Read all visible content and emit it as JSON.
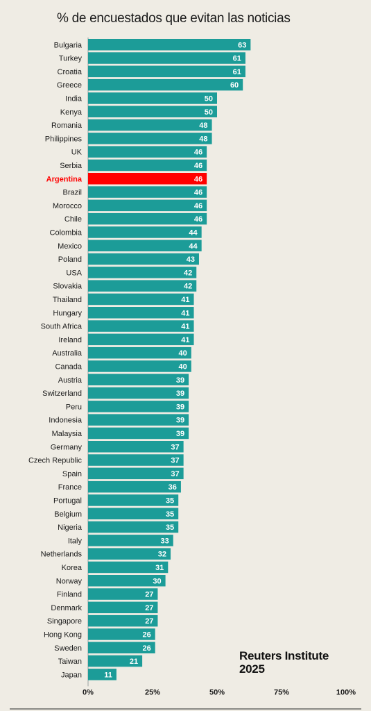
{
  "chart_data": {
    "type": "bar",
    "orientation": "horizontal",
    "title": "% de encuestados que evitan las noticias",
    "xlim": [
      0,
      100
    ],
    "ticks": [
      "0%",
      "25%",
      "50%",
      "75%",
      "100%"
    ],
    "tick_values": [
      0,
      25,
      50,
      75,
      100
    ],
    "bar_color": "#1c9c98",
    "highlight_color": "#ff0000",
    "highlight": "Argentina",
    "categories": [
      "Bulgaria",
      "Turkey",
      "Croatia",
      "Greece",
      "India",
      "Kenya",
      "Romania",
      "Philippines",
      "UK",
      "Serbia",
      "Argentina",
      "Brazil",
      "Morocco",
      "Chile",
      "Colombia",
      "Mexico",
      "Poland",
      "USA",
      "Slovakia",
      "Thailand",
      "Hungary",
      "South Africa",
      "Ireland",
      "Australia",
      "Canada",
      "Austria",
      "Switzerland",
      "Peru",
      "Indonesia",
      "Malaysia",
      "Germany",
      "Czech Republic",
      "Spain",
      "France",
      "Portugal",
      "Belgium",
      "Nigeria",
      "Italy",
      "Netherlands",
      "Korea",
      "Norway",
      "Finland",
      "Denmark",
      "Singapore",
      "Hong Kong",
      "Sweden",
      "Taiwan",
      "Japan"
    ],
    "values": [
      63,
      61,
      61,
      60,
      50,
      50,
      48,
      48,
      46,
      46,
      46,
      46,
      46,
      46,
      44,
      44,
      43,
      42,
      42,
      41,
      41,
      41,
      41,
      40,
      40,
      39,
      39,
      39,
      39,
      39,
      37,
      37,
      37,
      36,
      35,
      35,
      35,
      33,
      32,
      31,
      30,
      27,
      27,
      27,
      26,
      26,
      21,
      11
    ]
  },
  "source": {
    "line1": "Reuters Institute",
    "line2": "2025"
  }
}
